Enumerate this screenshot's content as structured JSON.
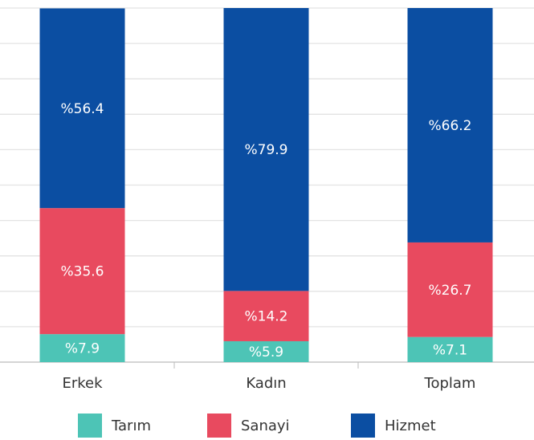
{
  "chart_data": {
    "type": "stacked_bar",
    "categories": [
      "Erkek",
      "Kadın",
      "Toplam"
    ],
    "series": [
      {
        "name": "Tarım",
        "color": "#4dc4b6",
        "values": [
          7.9,
          5.9,
          7.1
        ],
        "value_labels": [
          "%7.9",
          "%5.9",
          "%7.1"
        ]
      },
      {
        "name": "Sanayi",
        "color": "#e84a5f",
        "values": [
          35.6,
          14.2,
          26.7
        ],
        "value_labels": [
          "%35.6",
          "%14.2",
          "%26.7"
        ]
      },
      {
        "name": "Hizmet",
        "color": "#0b4ea2",
        "values": [
          56.4,
          79.9,
          66.2
        ],
        "value_labels": [
          "%56.4",
          "%79.9",
          "%66.2"
        ]
      }
    ],
    "ylim": [
      0,
      100
    ],
    "yticks": [
      0,
      10,
      20,
      30,
      40,
      50,
      60,
      70,
      80,
      90,
      100
    ],
    "grid": true
  }
}
